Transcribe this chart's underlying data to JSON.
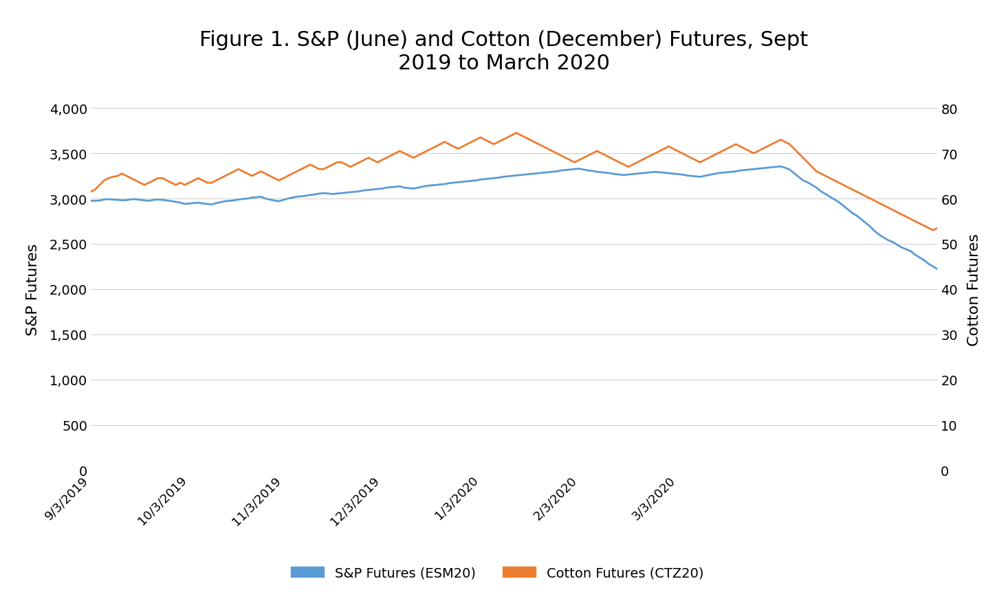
{
  "title": "Figure 1. S&P (June) and Cotton (December) Futures, Sept\n2019 to March 2020",
  "title_fontsize": 22,
  "ylabel_left": "S&P Futures",
  "ylabel_right": "Cotton Futures",
  "ylim_left": [
    0,
    4000
  ],
  "ylim_right": [
    0,
    80
  ],
  "yticks_left": [
    0,
    500,
    1000,
    1500,
    2000,
    2500,
    3000,
    3500,
    4000
  ],
  "yticks_right": [
    0,
    10,
    20,
    30,
    40,
    50,
    60,
    70,
    80
  ],
  "sp_color": "#5b9bd5",
  "cotton_color": "#ed7d31",
  "legend_sp": "S&P Futures (ESM20)",
  "legend_cotton": "Cotton Futures (CTZ20)",
  "line_width": 2.0,
  "background_color": "#ffffff",
  "sp_data": [
    2975,
    2975,
    2978,
    2990,
    2993,
    2988,
    2985,
    2980,
    2982,
    2992,
    2993,
    2985,
    2980,
    2975,
    2985,
    2990,
    2985,
    2978,
    2972,
    2963,
    2955,
    2940,
    2945,
    2950,
    2955,
    2945,
    2940,
    2935,
    2950,
    2960,
    2970,
    2975,
    2980,
    2990,
    2995,
    3000,
    3010,
    3015,
    3020,
    3000,
    2988,
    2978,
    2970,
    2985,
    3000,
    3010,
    3020,
    3025,
    3030,
    3040,
    3045,
    3055,
    3060,
    3055,
    3050,
    3055,
    3060,
    3065,
    3070,
    3075,
    3080,
    3090,
    3095,
    3100,
    3105,
    3110,
    3120,
    3125,
    3130,
    3135,
    3120,
    3115,
    3110,
    3120,
    3130,
    3140,
    3145,
    3150,
    3155,
    3160,
    3170,
    3175,
    3180,
    3185,
    3190,
    3195,
    3200,
    3210,
    3215,
    3220,
    3225,
    3230,
    3240,
    3245,
    3250,
    3255,
    3260,
    3265,
    3270,
    3275,
    3280,
    3285,
    3290,
    3295,
    3300,
    3310,
    3315,
    3320,
    3325,
    3330,
    3320,
    3310,
    3305,
    3295,
    3290,
    3285,
    3280,
    3270,
    3265,
    3260,
    3265,
    3270,
    3275,
    3280,
    3285,
    3290,
    3295,
    3290,
    3285,
    3280,
    3275,
    3270,
    3265,
    3255,
    3250,
    3245,
    3240,
    3250,
    3260,
    3270,
    3280,
    3285,
    3290,
    3295,
    3300,
    3310,
    3315,
    3320,
    3325,
    3330,
    3335,
    3340,
    3345,
    3350,
    3355,
    3340,
    3320,
    3280,
    3240,
    3200,
    3180,
    3150,
    3120,
    3080,
    3050,
    3020,
    2990,
    2960,
    2920,
    2880,
    2840,
    2810,
    2770,
    2730,
    2690,
    2640,
    2600,
    2570,
    2540,
    2520,
    2490,
    2460,
    2440,
    2420,
    2380,
    2350,
    2320,
    2280,
    2250,
    2220
  ],
  "cotton_data": [
    61.5,
    62.0,
    63.0,
    64.0,
    64.5,
    64.8,
    65.0,
    65.5,
    65.0,
    64.5,
    64.0,
    63.5,
    63.0,
    63.5,
    64.0,
    64.5,
    64.5,
    64.0,
    63.5,
    63.0,
    63.5,
    63.0,
    63.5,
    64.0,
    64.5,
    64.0,
    63.5,
    63.5,
    64.0,
    64.5,
    65.0,
    65.5,
    66.0,
    66.5,
    66.0,
    65.5,
    65.0,
    65.5,
    66.0,
    65.5,
    65.0,
    64.5,
    64.0,
    64.5,
    65.0,
    65.5,
    66.0,
    66.5,
    67.0,
    67.5,
    67.0,
    66.5,
    66.5,
    67.0,
    67.5,
    68.0,
    68.0,
    67.5,
    67.0,
    67.5,
    68.0,
    68.5,
    69.0,
    68.5,
    68.0,
    68.5,
    69.0,
    69.5,
    70.0,
    70.5,
    70.0,
    69.5,
    69.0,
    69.5,
    70.0,
    70.5,
    71.0,
    71.5,
    72.0,
    72.5,
    72.0,
    71.5,
    71.0,
    71.5,
    72.0,
    72.5,
    73.0,
    73.5,
    73.0,
    72.5,
    72.0,
    72.5,
    73.0,
    73.5,
    74.0,
    74.5,
    74.0,
    73.5,
    73.0,
    72.5,
    72.0,
    71.5,
    71.0,
    70.5,
    70.0,
    69.5,
    69.0,
    68.5,
    68.0,
    68.5,
    69.0,
    69.5,
    70.0,
    70.5,
    70.0,
    69.5,
    69.0,
    68.5,
    68.0,
    67.5,
    67.0,
    67.5,
    68.0,
    68.5,
    69.0,
    69.5,
    70.0,
    70.5,
    71.0,
    71.5,
    71.0,
    70.5,
    70.0,
    69.5,
    69.0,
    68.5,
    68.0,
    68.5,
    69.0,
    69.5,
    70.0,
    70.5,
    71.0,
    71.5,
    72.0,
    71.5,
    71.0,
    70.5,
    70.0,
    70.5,
    71.0,
    71.5,
    72.0,
    72.5,
    73.0,
    72.5,
    72.0,
    71.0,
    70.0,
    69.0,
    68.0,
    67.0,
    66.0,
    65.5,
    65.0,
    64.5,
    64.0,
    63.5,
    63.0,
    62.5,
    62.0,
    61.5,
    61.0,
    60.5,
    60.0,
    59.5,
    59.0,
    58.5,
    58.0,
    57.5,
    57.0,
    56.5,
    56.0,
    55.5,
    55.0,
    54.5,
    54.0,
    53.5,
    53.0,
    53.5
  ],
  "xtick_labels": [
    "9/3/2019",
    "10/3/2019",
    "11/3/2019",
    "12/3/2019",
    "1/3/2020",
    "2/3/2020",
    "3/3/2020"
  ],
  "xtick_positions": [
    0,
    22,
    43,
    65,
    87,
    109,
    131
  ]
}
